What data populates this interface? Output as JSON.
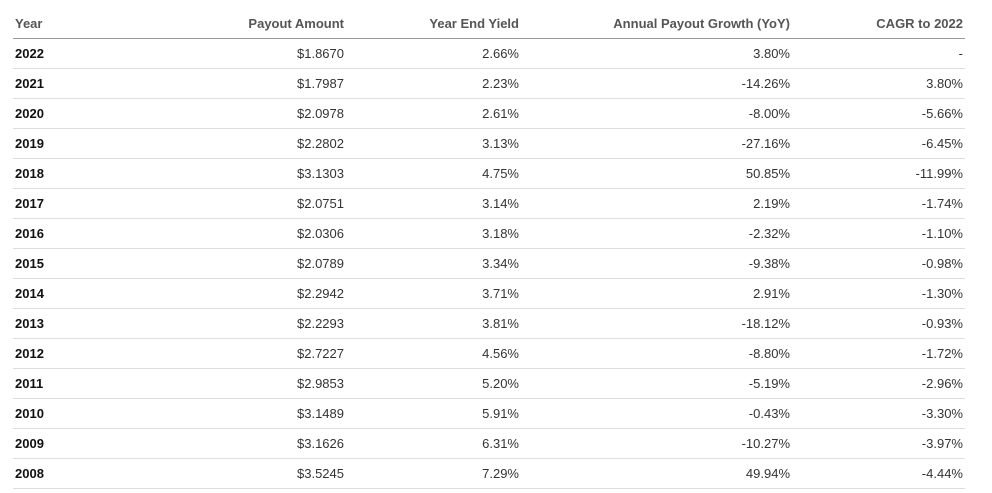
{
  "headers": {
    "year": "Year",
    "amount": "Payout Amount",
    "yield": "Year End Yield",
    "growth": "Annual Payout Growth (YoY)",
    "cagr": "CAGR to 2022"
  },
  "rows": [
    {
      "year": "2022",
      "amount": "$1.8670",
      "yield": "2.66%",
      "growth": "3.80%",
      "cagr": "-"
    },
    {
      "year": "2021",
      "amount": "$1.7987",
      "yield": "2.23%",
      "growth": "-14.26%",
      "cagr": "3.80%"
    },
    {
      "year": "2020",
      "amount": "$2.0978",
      "yield": "2.61%",
      "growth": "-8.00%",
      "cagr": "-5.66%"
    },
    {
      "year": "2019",
      "amount": "$2.2802",
      "yield": "3.13%",
      "growth": "-27.16%",
      "cagr": "-6.45%"
    },
    {
      "year": "2018",
      "amount": "$3.1303",
      "yield": "4.75%",
      "growth": "50.85%",
      "cagr": "-11.99%"
    },
    {
      "year": "2017",
      "amount": "$2.0751",
      "yield": "3.14%",
      "growth": "2.19%",
      "cagr": "-1.74%"
    },
    {
      "year": "2016",
      "amount": "$2.0306",
      "yield": "3.18%",
      "growth": "-2.32%",
      "cagr": "-1.10%"
    },
    {
      "year": "2015",
      "amount": "$2.0789",
      "yield": "3.34%",
      "growth": "-9.38%",
      "cagr": "-0.98%"
    },
    {
      "year": "2014",
      "amount": "$2.2942",
      "yield": "3.71%",
      "growth": "2.91%",
      "cagr": "-1.30%"
    },
    {
      "year": "2013",
      "amount": "$2.2293",
      "yield": "3.81%",
      "growth": "-18.12%",
      "cagr": "-0.93%"
    },
    {
      "year": "2012",
      "amount": "$2.7227",
      "yield": "4.56%",
      "growth": "-8.80%",
      "cagr": "-1.72%"
    },
    {
      "year": "2011",
      "amount": "$2.9853",
      "yield": "5.20%",
      "growth": "-5.19%",
      "cagr": "-2.96%"
    },
    {
      "year": "2010",
      "amount": "$3.1489",
      "yield": "5.91%",
      "growth": "-0.43%",
      "cagr": "-3.30%"
    },
    {
      "year": "2009",
      "amount": "$3.1626",
      "yield": "6.31%",
      "growth": "-10.27%",
      "cagr": "-3.97%"
    },
    {
      "year": "2008",
      "amount": "$3.5245",
      "yield": "7.29%",
      "growth": "49.94%",
      "cagr": "-4.44%"
    }
  ]
}
